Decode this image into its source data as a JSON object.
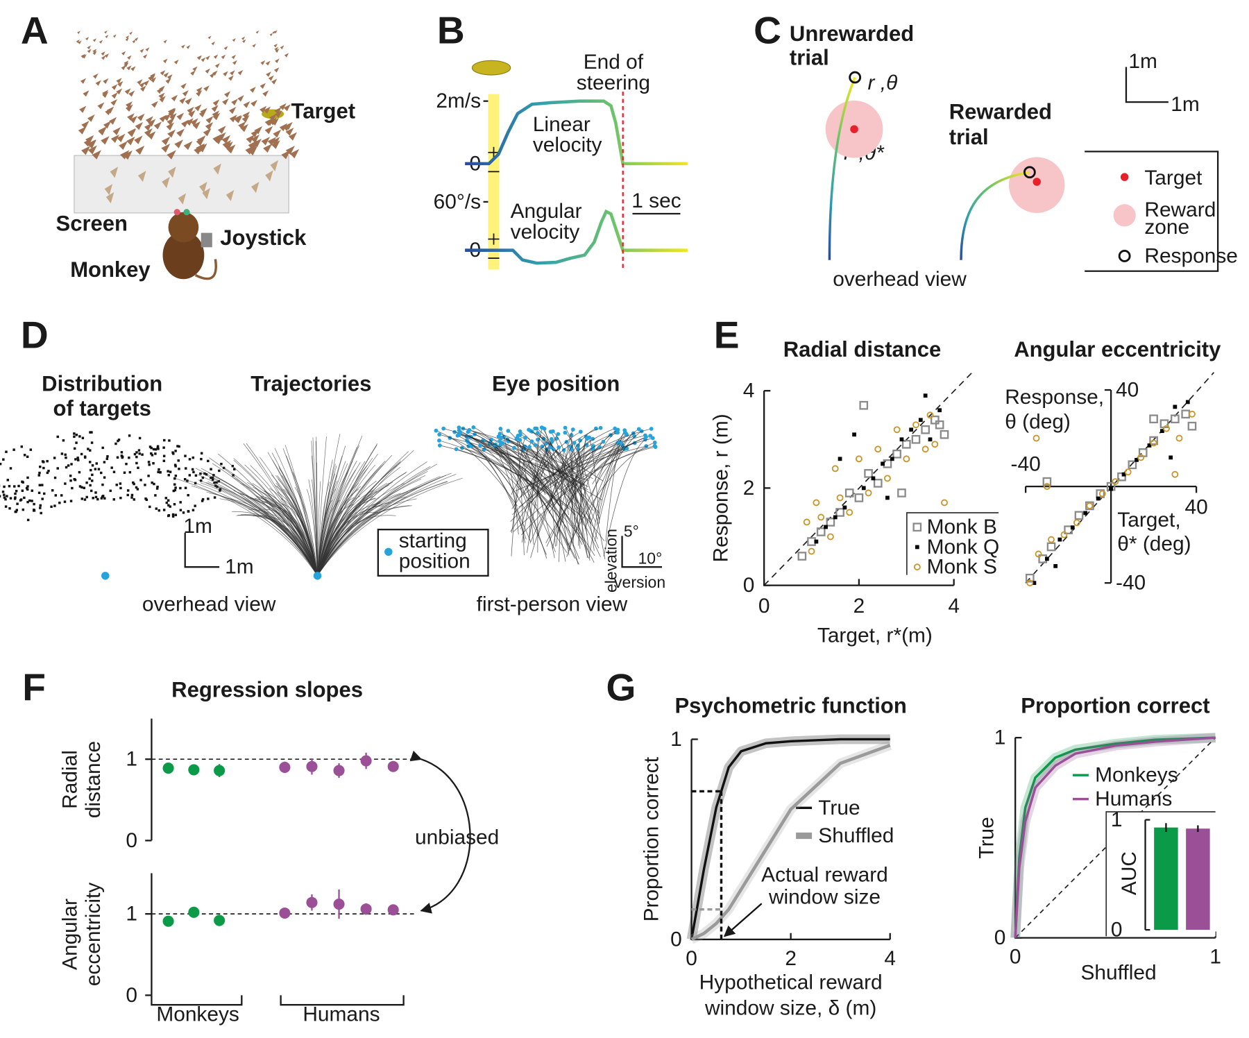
{
  "figure": {
    "panel_letters": [
      "A",
      "B",
      "C",
      "D",
      "E",
      "F",
      "G"
    ],
    "panel_a": {
      "target": "Target",
      "screen": "Screen",
      "joystick": "Joystick",
      "monkey": "Monkey"
    },
    "panel_c": {
      "unrewarded": [
        "Unrewarded",
        "trial"
      ],
      "rewarded": [
        "Rewarded",
        "trial"
      ],
      "response_label": "r ,θ",
      "target_label": "r*,θ*",
      "scale_y": "1m",
      "scale_x": "1m",
      "legend": [
        "Target",
        [
          "Reward",
          "zone"
        ],
        "Response"
      ],
      "caption": "overhead view"
    },
    "panel_d": {
      "titles": [
        [
          "Distribution",
          "of targets"
        ],
        "Trajectories",
        "Eye position"
      ],
      "scale_y": "1m",
      "scale_x": "1m",
      "legend": [
        "starting",
        "position"
      ],
      "eye_scale_y": "5°",
      "eye_scale_x": "10°",
      "eye_axis_y": "elevation",
      "eye_axis_x": "version",
      "captions": [
        "overhead view",
        "first-person view"
      ]
    }
  },
  "chart_data": [
    {
      "type": "velocity",
      "xlim": [
        0,
        4.65
      ],
      "colors": [
        "#2b4a9c",
        "#2f9fb0",
        "#6cc36a",
        "#f3e61c"
      ],
      "subplots": [
        {
          "label": [
            "Linear",
            "velocity"
          ],
          "ylim": [
            -0.3,
            2.3
          ],
          "yticks": [
            0,
            {
              "value": 2,
              "label": "2m/s"
            }
          ],
          "x": [
            0,
            0.5,
            0.7,
            0.9,
            1.1,
            1.4,
            1.8,
            2.4,
            2.9,
            3.05,
            3.15,
            3.3,
            4.65
          ],
          "values": [
            0,
            0,
            0.3,
            1.0,
            1.6,
            1.9,
            1.95,
            2.0,
            2.0,
            1.85,
            1.3,
            0,
            0
          ]
        },
        {
          "label": [
            "Angular",
            "velocity"
          ],
          "ylim": [
            -20,
            70
          ],
          "yticks": [
            0,
            {
              "value": 60,
              "label": "60°/s"
            }
          ],
          "x": [
            0,
            1.0,
            1.2,
            1.5,
            1.9,
            2.2,
            2.5,
            2.7,
            2.85,
            2.95,
            3.05,
            3.3,
            4.65
          ],
          "values": [
            0,
            0,
            -12,
            -16,
            -15,
            -10,
            -6,
            10,
            35,
            48,
            45,
            0,
            0
          ]
        }
      ],
      "scale_bar": {
        "value": 1,
        "label": "1 sec"
      },
      "event": {
        "x": 3.3,
        "label": [
          "End of",
          "steering"
        ],
        "color": "#e8202a"
      }
    },
    {
      "type": "scatter",
      "title": "Radial distance",
      "xlabel": "Target, r*(m)",
      "ylabel": "Response, r  (m)",
      "xlim": [
        0,
        4
      ],
      "ylim": [
        0,
        4
      ],
      "xticks": [
        0,
        2,
        4
      ],
      "yticks": [
        0,
        2,
        4
      ],
      "diagonal": true,
      "series": [
        {
          "name": "Monk B",
          "color": "#8a8a8a",
          "marker": "square",
          "x": [
            0.8,
            1.0,
            1.2,
            1.4,
            1.6,
            1.8,
            2.0,
            2.2,
            2.4,
            2.6,
            2.8,
            3.0,
            3.2,
            3.4,
            3.6,
            3.8,
            2.1,
            2.9,
            3.7
          ],
          "values": [
            0.6,
            0.9,
            1.1,
            1.3,
            1.5,
            1.9,
            1.8,
            2.3,
            2.1,
            2.5,
            2.7,
            2.9,
            3.0,
            3.2,
            3.4,
            3.1,
            3.7,
            1.9,
            3.3
          ]
        },
        {
          "name": "Monk Q",
          "color": "#000000",
          "marker": "filled-square",
          "x": [
            1.1,
            1.3,
            1.5,
            1.7,
            1.9,
            2.1,
            2.3,
            2.5,
            2.7,
            2.9,
            3.1,
            3.3,
            3.5,
            3.7,
            1.6,
            2.6,
            3.4
          ],
          "values": [
            0.9,
            1.2,
            1.4,
            1.6,
            3.1,
            2.0,
            2.2,
            2.5,
            2.6,
            3.0,
            3.2,
            3.4,
            3.0,
            3.6,
            2.6,
            1.8,
            3.9
          ]
        },
        {
          "name": "Monk S",
          "color": "#c8962a",
          "marker": "circle",
          "x": [
            0.9,
            1.0,
            1.2,
            1.4,
            1.6,
            1.8,
            2.0,
            2.2,
            2.4,
            2.6,
            2.8,
            3.0,
            3.2,
            3.4,
            3.6,
            3.8,
            1.1,
            1.5,
            3.5
          ],
          "values": [
            1.3,
            0.7,
            1.4,
            1.0,
            1.8,
            1.5,
            2.6,
            1.9,
            2.8,
            2.2,
            3.2,
            2.6,
            3.3,
            2.8,
            2.9,
            1.7,
            1.7,
            2.4,
            3.5
          ]
        }
      ]
    },
    {
      "type": "scatter",
      "title": "Angular eccentricity",
      "xlabel": [
        "Target,",
        "θ* (deg)"
      ],
      "ylabel": [
        "Response,",
        "θ (deg)"
      ],
      "xlim": [
        -40,
        40
      ],
      "ylim": [
        -40,
        40
      ],
      "xticks": [
        -40,
        40
      ],
      "yticks": [
        -40,
        40
      ],
      "diagonal": true,
      "axes_at_origin": true,
      "series": [
        {
          "color": "#8a8a8a",
          "marker": "square",
          "x": [
            -38,
            -32,
            -28,
            -20,
            -15,
            -10,
            -5,
            0,
            5,
            10,
            15,
            20,
            25,
            30,
            35,
            38,
            -30,
            20
          ],
          "values": [
            -38,
            -30,
            -25,
            -18,
            -12,
            -8,
            -3,
            0,
            4,
            9,
            14,
            19,
            26,
            28,
            30,
            25,
            2,
            28
          ]
        },
        {
          "color": "#000000",
          "marker": "filled-square",
          "x": [
            -36,
            -30,
            -24,
            -18,
            -12,
            -6,
            0,
            6,
            12,
            18,
            24,
            30,
            36,
            -26,
            28
          ],
          "values": [
            -40,
            -30,
            -22,
            -17,
            -11,
            -5,
            -1,
            5,
            11,
            17,
            23,
            33,
            35,
            -33,
            12
          ]
        },
        {
          "color": "#c8962a",
          "marker": "circle",
          "x": [
            -38,
            -34,
            -28,
            -22,
            -16,
            -10,
            -4,
            2,
            8,
            14,
            20,
            26,
            32,
            38,
            -35,
            -30,
            30
          ],
          "values": [
            -40,
            -28,
            -22,
            -20,
            -15,
            -8,
            -3,
            2,
            6,
            12,
            18,
            24,
            20,
            30,
            20,
            0,
            5
          ]
        }
      ]
    },
    {
      "type": "dots",
      "title": "Regression slopes",
      "annotation": "unbiased",
      "subplots": [
        {
          "ylabel": [
            "Radial",
            "distance"
          ],
          "ylim": [
            0,
            1.5
          ],
          "yticks": [
            0,
            1
          ],
          "reference": 1,
          "series": [
            {
              "name": "Monkeys",
              "color": "#0a9a48",
              "values": [
                0.89,
                0.87,
                0.86
              ],
              "errors": [
                0.04,
                0.03,
                0.08
              ]
            },
            {
              "name": "Humans",
              "color": "#9b4f96",
              "values": [
                0.9,
                0.91,
                0.86,
                0.98,
                0.91
              ],
              "errors": [
                0.07,
                0.1,
                0.09,
                0.1,
                0.06
              ]
            }
          ]
        },
        {
          "ylabel": [
            "Angular",
            "eccentricity"
          ],
          "ylim": [
            0,
            1.5
          ],
          "yticks": [
            0,
            1
          ],
          "reference": 1,
          "series": [
            {
              "color": "#0a9a48",
              "values": [
                0.91,
                1.02,
                0.92
              ],
              "errors": [
                0.03,
                0.02,
                0.07
              ]
            },
            {
              "color": "#9b4f96",
              "values": [
                1.01,
                1.14,
                1.12,
                1.06,
                1.05
              ],
              "errors": [
                0.05,
                0.1,
                0.18,
                0.07,
                0.05
              ]
            }
          ]
        }
      ]
    },
    {
      "type": "line",
      "title": "Psychometric function",
      "xlabel": [
        "Hypothetical reward",
        "window size, δ (m)"
      ],
      "ylabel": "Proportion correct",
      "xlim": [
        0,
        4
      ],
      "ylim": [
        0,
        1
      ],
      "xticks": [
        0,
        2,
        4
      ],
      "yticks": [
        0,
        1
      ],
      "x": [
        0,
        0.25,
        0.5,
        0.75,
        1,
        1.5,
        2,
        3,
        4
      ],
      "series": [
        {
          "name": "True",
          "color": "#111111",
          "values": [
            0,
            0.35,
            0.66,
            0.86,
            0.94,
            0.98,
            0.99,
            1,
            1
          ]
        },
        {
          "name": "Shuffled",
          "color": "#9a9a9a",
          "values": [
            0,
            0.03,
            0.08,
            0.15,
            0.25,
            0.45,
            0.65,
            0.88,
            0.97
          ]
        }
      ],
      "marker": {
        "x": 0.6,
        "values": [
          0.74,
          0.15
        ],
        "label": [
          "Actual reward",
          "window size"
        ]
      }
    },
    {
      "type": "line",
      "title": "Proportion correct",
      "xlabel": "Shuffled",
      "ylabel": "True",
      "xlim": [
        0,
        1
      ],
      "ylim": [
        0,
        1
      ],
      "xticks": [
        0,
        1
      ],
      "yticks": [
        0,
        1
      ],
      "diagonal": true,
      "x": [
        0,
        0.02,
        0.05,
        0.1,
        0.2,
        0.3,
        0.5,
        0.7,
        1
      ],
      "series": [
        {
          "name": "Monkeys",
          "color": "#0a9a48",
          "values": [
            0,
            0.4,
            0.65,
            0.8,
            0.9,
            0.94,
            0.97,
            0.99,
            1
          ]
        },
        {
          "name": "Humans",
          "color": "#9b4f96",
          "values": [
            0,
            0.35,
            0.58,
            0.75,
            0.86,
            0.92,
            0.96,
            0.98,
            1
          ]
        }
      ],
      "inset": {
        "type": "bar",
        "ylabel": "AUC",
        "ylim": [
          0,
          1
        ],
        "yticks": [
          0,
          1
        ],
        "values": [
          0.93,
          0.92
        ],
        "errors": [
          0.04,
          0.03
        ],
        "colors": [
          "#0a9a48",
          "#9b4f96"
        ]
      }
    }
  ]
}
